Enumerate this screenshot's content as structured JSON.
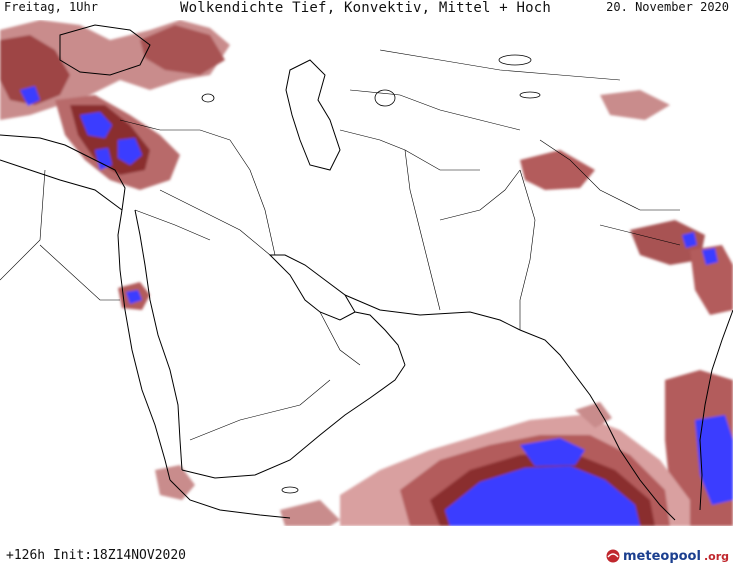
{
  "header": {
    "left": "Freitag, 1Uhr",
    "center": "Wolkendichte  Tief, Konvektiv, Mittel + Hoch",
    "right": "20. November 2020"
  },
  "footer": {
    "init": "+126h  Init:18Z14NOV2020"
  },
  "logo": {
    "name": "meteopool",
    "suffix": ".org"
  },
  "colors": {
    "land_outline": "#000000",
    "border": "#000000",
    "cloud_low": "#dca5a5",
    "cloud_mid": "#b35b5b",
    "cloud_high": "#8a2d2d",
    "cloud_convective": "#3a3dff",
    "background": "#ffffff"
  },
  "map": {
    "region": "Middle East / Arabian Sea / Western India",
    "layer": "cloud density"
  }
}
